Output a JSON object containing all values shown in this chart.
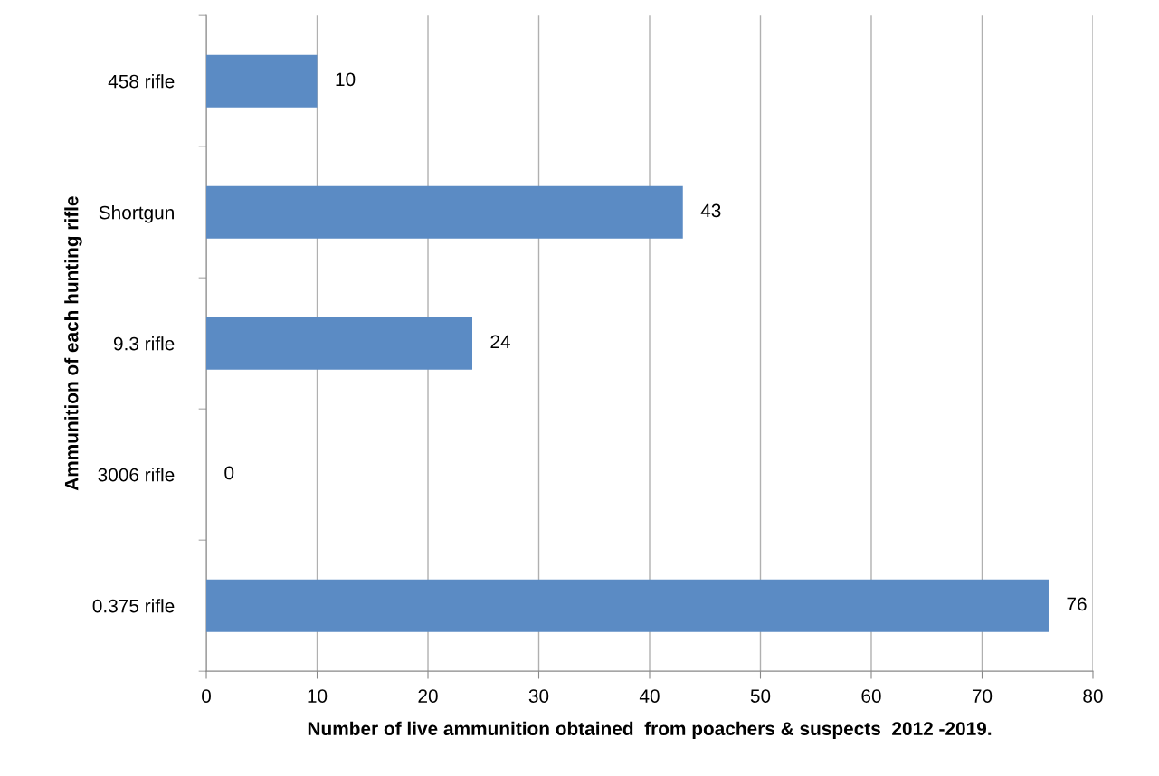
{
  "chart_data": {
    "type": "bar",
    "orientation": "horizontal",
    "xlabel": "Number of live ammunition obtained  from poachers & suspects  2012 -2019.",
    "ylabel": "Ammunition of each hunting rifle",
    "categories": [
      "458 rifle",
      "Shortgun",
      "9.3 rifle",
      "3006 rifle",
      "0.375 rifle"
    ],
    "values": [
      10,
      43,
      24,
      0,
      76
    ],
    "color": "#5b8bc4",
    "xlim": [
      0,
      80
    ],
    "xticks": [
      0,
      10,
      20,
      30,
      40,
      50,
      60,
      70,
      80
    ],
    "grid": "x",
    "data_labels": true,
    "legend": false
  }
}
